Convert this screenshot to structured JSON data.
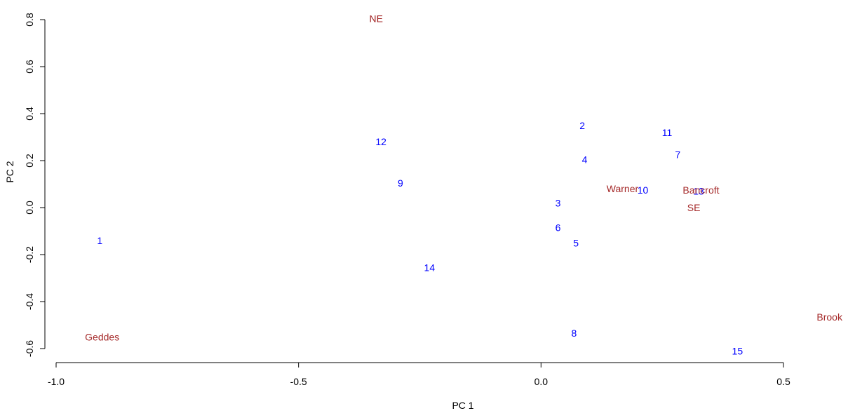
{
  "chart_data": {
    "type": "scatter",
    "title": "",
    "xlabel": "PC 1",
    "ylabel": "PC 2",
    "xlim": [
      -1.0,
      0.62
    ],
    "ylim": [
      -0.65,
      0.82
    ],
    "x_ticks": [
      -1.0,
      -0.5,
      0.0,
      0.5
    ],
    "x_tick_labels": [
      "-1.0",
      "-0.5",
      "0.0",
      "0.5"
    ],
    "y_ticks": [
      -0.6,
      -0.4,
      -0.2,
      0.0,
      0.2,
      0.4,
      0.6,
      0.8
    ],
    "y_tick_labels": [
      "-0.6",
      "-0.4",
      "-0.2",
      "0.0",
      "0.2",
      "0.4",
      "0.6",
      "0.8"
    ],
    "grid": false,
    "colors": {
      "observations": "#0000ff",
      "variables": "#a52a2a"
    },
    "series": [
      {
        "group": "observations",
        "points": [
          {
            "label": "1",
            "x": -0.91,
            "y": -0.14
          },
          {
            "label": "2",
            "x": 0.085,
            "y": 0.35
          },
          {
            "label": "3",
            "x": 0.035,
            "y": 0.02
          },
          {
            "label": "4",
            "x": 0.09,
            "y": 0.205
          },
          {
            "label": "5",
            "x": 0.072,
            "y": -0.15
          },
          {
            "label": "6",
            "x": 0.035,
            "y": -0.085
          },
          {
            "label": "7",
            "x": 0.282,
            "y": 0.225
          },
          {
            "label": "8",
            "x": 0.068,
            "y": -0.535
          },
          {
            "label": "9",
            "x": -0.29,
            "y": 0.105
          },
          {
            "label": "10",
            "x": 0.21,
            "y": 0.075
          },
          {
            "label": "11",
            "x": 0.26,
            "y": 0.32
          },
          {
            "label": "12",
            "x": -0.33,
            "y": 0.28
          },
          {
            "label": "13",
            "x": 0.325,
            "y": 0.07
          },
          {
            "label": "14",
            "x": -0.23,
            "y": -0.255
          },
          {
            "label": "15",
            "x": 0.405,
            "y": -0.61
          }
        ]
      },
      {
        "group": "variables",
        "points": [
          {
            "label": "NE",
            "x": -0.34,
            "y": 0.805
          },
          {
            "label": "Geddes",
            "x": -0.905,
            "y": -0.55
          },
          {
            "label": "Warner",
            "x": 0.168,
            "y": 0.08
          },
          {
            "label": "Bancroft",
            "x": 0.33,
            "y": 0.075
          },
          {
            "label": "SE",
            "x": 0.315,
            "y": 0.0
          },
          {
            "label": "Brook",
            "x": 0.595,
            "y": -0.465
          }
        ]
      }
    ]
  }
}
